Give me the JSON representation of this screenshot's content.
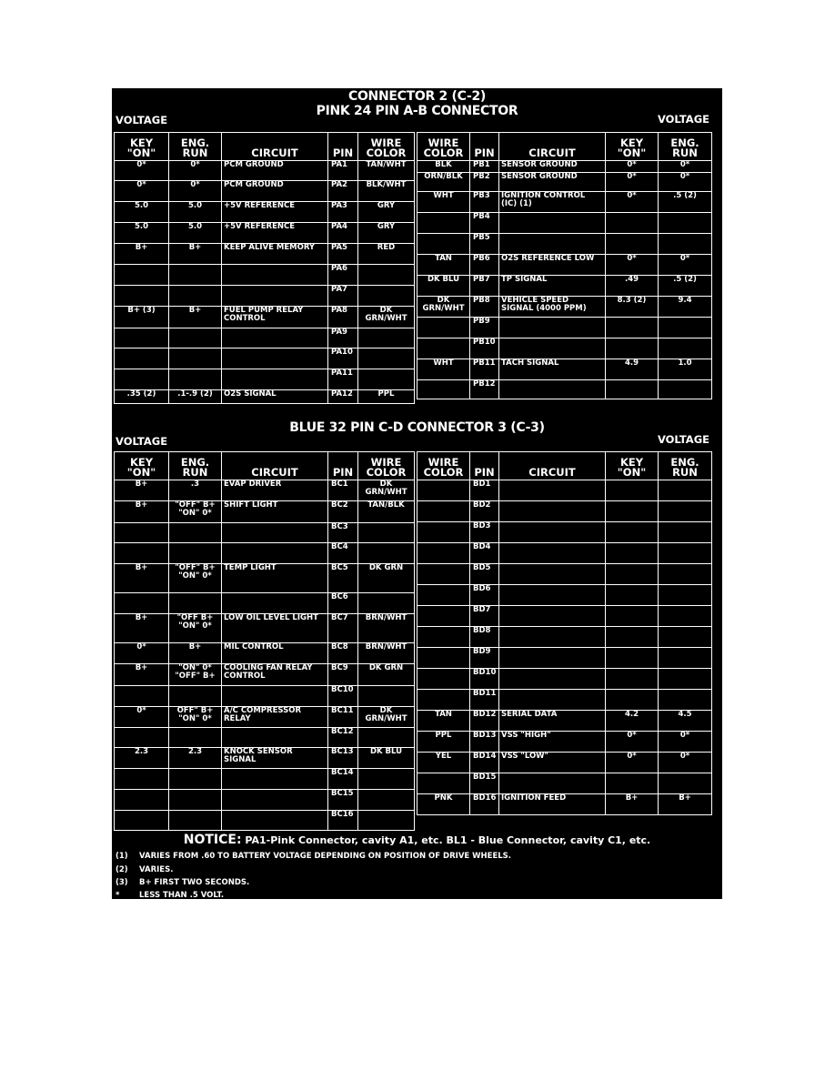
{
  "connector2": {
    "title_line1": "CONNECTOR 2 (C-2)",
    "title_line2": "PINK 24 PIN A-B CONNECTOR",
    "voltage_left": "VOLTAGE",
    "voltage_right": "VOLTAGE",
    "table_a": {
      "headers": [
        "KEY \"ON\"",
        "ENG. RUN",
        "CIRCUIT",
        "PIN",
        "WIRE COLOR"
      ],
      "rows": [
        [
          "0*",
          "0*",
          "PCM GROUND",
          "PA1",
          "TAN/WHT"
        ],
        [
          "0*",
          "0*",
          "PCM GROUND",
          "PA2",
          "BLK/WHT"
        ],
        [
          "5.0",
          "5.0",
          "+5V REFERENCE",
          "PA3",
          "GRY"
        ],
        [
          "5.0",
          "5.0",
          "+5V REFERENCE",
          "PA4",
          "GRY"
        ],
        [
          "B+",
          "B+",
          "KEEP ALIVE MEMORY",
          "PA5",
          "RED"
        ],
        [
          "",
          "",
          "",
          "PA6",
          ""
        ],
        [
          "",
          "",
          "",
          "PA7",
          ""
        ],
        [
          "B+ (3)",
          "B+",
          "FUEL PUMP RELAY CONTROL",
          "PA8",
          "DK GRN/WHT"
        ],
        [
          "",
          "",
          "",
          "PA9",
          ""
        ],
        [
          "",
          "",
          "",
          "PA10",
          ""
        ],
        [
          "",
          "",
          "",
          "PA11",
          ""
        ],
        [
          ".35 (2)",
          ".1-.9 (2)",
          "O2S SIGNAL",
          "PA12",
          "PPL"
        ]
      ]
    },
    "table_b": {
      "headers": [
        "WIRE COLOR",
        "PIN",
        "CIRCUIT",
        "KEY \"ON\"",
        "ENG. RUN"
      ],
      "rows": [
        [
          "BLK",
          "PB1",
          "SENSOR GROUND",
          "0*",
          "0*"
        ],
        [
          "ORN/BLK",
          "PB2",
          "SENSOR GROUND",
          "0*",
          "0*"
        ],
        [
          "WHT",
          "PB3",
          "IGNITION CONTROL (IC) (1)",
          "0*",
          ".5 (2)"
        ],
        [
          "",
          "PB4",
          "",
          "",
          ""
        ],
        [
          "",
          "PB5",
          "",
          "",
          ""
        ],
        [
          "TAN",
          "PB6",
          "O2S REFERENCE LOW",
          "0*",
          "0*"
        ],
        [
          "DK BLU",
          "PB7",
          "TP SIGNAL",
          ".49",
          ".5 (2)"
        ],
        [
          "DK GRN/WHT",
          "PB8",
          "VEHICLE SPEED SIGNAL (4000 PPM)",
          "8.3 (2)",
          "9.4"
        ],
        [
          "",
          "PB9",
          "",
          "",
          ""
        ],
        [
          "",
          "PB10",
          "",
          "",
          ""
        ],
        [
          "WHT",
          "PB11",
          "TACH SIGNAL",
          "4.9",
          "1.0"
        ],
        [
          "",
          "PB12",
          "",
          "",
          ""
        ]
      ]
    }
  },
  "connector3": {
    "title": "BLUE 32 PIN C-D CONNECTOR 3 (C-3)",
    "voltage_left": "VOLTAGE",
    "voltage_right": "VOLTAGE",
    "table_c": {
      "headers": [
        "KEY \"ON\"",
        "ENG. RUN",
        "CIRCUIT",
        "PIN",
        "WIRE COLOR"
      ],
      "rows": [
        [
          "B+",
          ".3",
          "EVAP DRIVER",
          "BC1",
          "DK GRN/WHT"
        ],
        [
          "B+",
          "\"OFF\" B+ \"ON\" 0*",
          "SHIFT LIGHT",
          "BC2",
          "TAN/BLK"
        ],
        [
          "",
          "",
          "",
          "BC3",
          ""
        ],
        [
          "",
          "",
          "",
          "BC4",
          ""
        ],
        [
          "B+",
          "\"OFF\" B+ \"ON\" 0*",
          "TEMP LIGHT",
          "BC5",
          "DK GRN"
        ],
        [
          "",
          "",
          "",
          "BC6",
          ""
        ],
        [
          "B+",
          "\"OFF B+ \"ON\" 0*",
          "LOW OIL LEVEL LIGHT",
          "BC7",
          "BRN/WHT"
        ],
        [
          "0*",
          "B+",
          "MIL CONTROL",
          "BC8",
          "BRN/WHT"
        ],
        [
          "B+",
          "\"ON\" 0* \"OFF\" B+",
          "COOLING FAN RELAY CONTROL",
          "BC9",
          "DK GRN"
        ],
        [
          "",
          "",
          "",
          "BC10",
          ""
        ],
        [
          "0*",
          "OFF\" B+ \"ON\" 0*",
          "A/C COMPRESSOR RELAY",
          "BC11",
          "DK GRN/WHT"
        ],
        [
          "",
          "",
          "",
          "BC12",
          ""
        ],
        [
          "2.3",
          "2.3",
          "KNOCK SENSOR SIGNAL",
          "BC13",
          "DK BLU"
        ],
        [
          "",
          "",
          "",
          "BC14",
          ""
        ],
        [
          "",
          "",
          "",
          "BC15",
          ""
        ],
        [
          "",
          "",
          "",
          "BC16",
          ""
        ]
      ]
    },
    "table_d": {
      "headers": [
        "WIRE COLOR",
        "PIN",
        "CIRCUIT",
        "KEY \"ON\"",
        "ENG. RUN"
      ],
      "rows": [
        [
          "",
          "BD1",
          "",
          "",
          ""
        ],
        [
          "",
          "BD2",
          "",
          "",
          ""
        ],
        [
          "",
          "BD3",
          "",
          "",
          ""
        ],
        [
          "",
          "BD4",
          "",
          "",
          ""
        ],
        [
          "",
          "BD5",
          "",
          "",
          ""
        ],
        [
          "",
          "BD6",
          "",
          "",
          ""
        ],
        [
          "",
          "BD7",
          "",
          "",
          ""
        ],
        [
          "",
          "BD8",
          "",
          "",
          ""
        ],
        [
          "",
          "BD9",
          "",
          "",
          ""
        ],
        [
          "",
          "BD10",
          "",
          "",
          ""
        ],
        [
          "",
          "BD11",
          "",
          "",
          ""
        ],
        [
          "TAN",
          "BD12",
          "SERIAL DATA",
          "4.2",
          "4.5"
        ],
        [
          "PPL",
          "BD13",
          "VSS \"HIGH\"",
          "0*",
          "0*"
        ],
        [
          "YEL",
          "BD14",
          "VSS \"LOW\"",
          "0*",
          "0*"
        ],
        [
          "",
          "BD15",
          "",
          "",
          ""
        ],
        [
          "PNK",
          "BD16",
          "IGNITION FEED",
          "B+",
          "B+"
        ]
      ]
    }
  },
  "notice": {
    "label": "NOTICE:",
    "text": "PA1-Pink Connector, cavity A1, etc.   BL1 - Blue Connector, cavity C1, etc."
  },
  "footnotes": [
    {
      "mark": "(1)",
      "text": "VARIES FROM .60 TO BATTERY VOLTAGE DEPENDING ON POSITION OF DRIVE WHEELS."
    },
    {
      "mark": "(2)",
      "text": "VARIES."
    },
    {
      "mark": "(3)",
      "text": "B+ FIRST TWO SECONDS."
    },
    {
      "mark": "*",
      "text": "LESS THAN .5 VOLT."
    }
  ]
}
